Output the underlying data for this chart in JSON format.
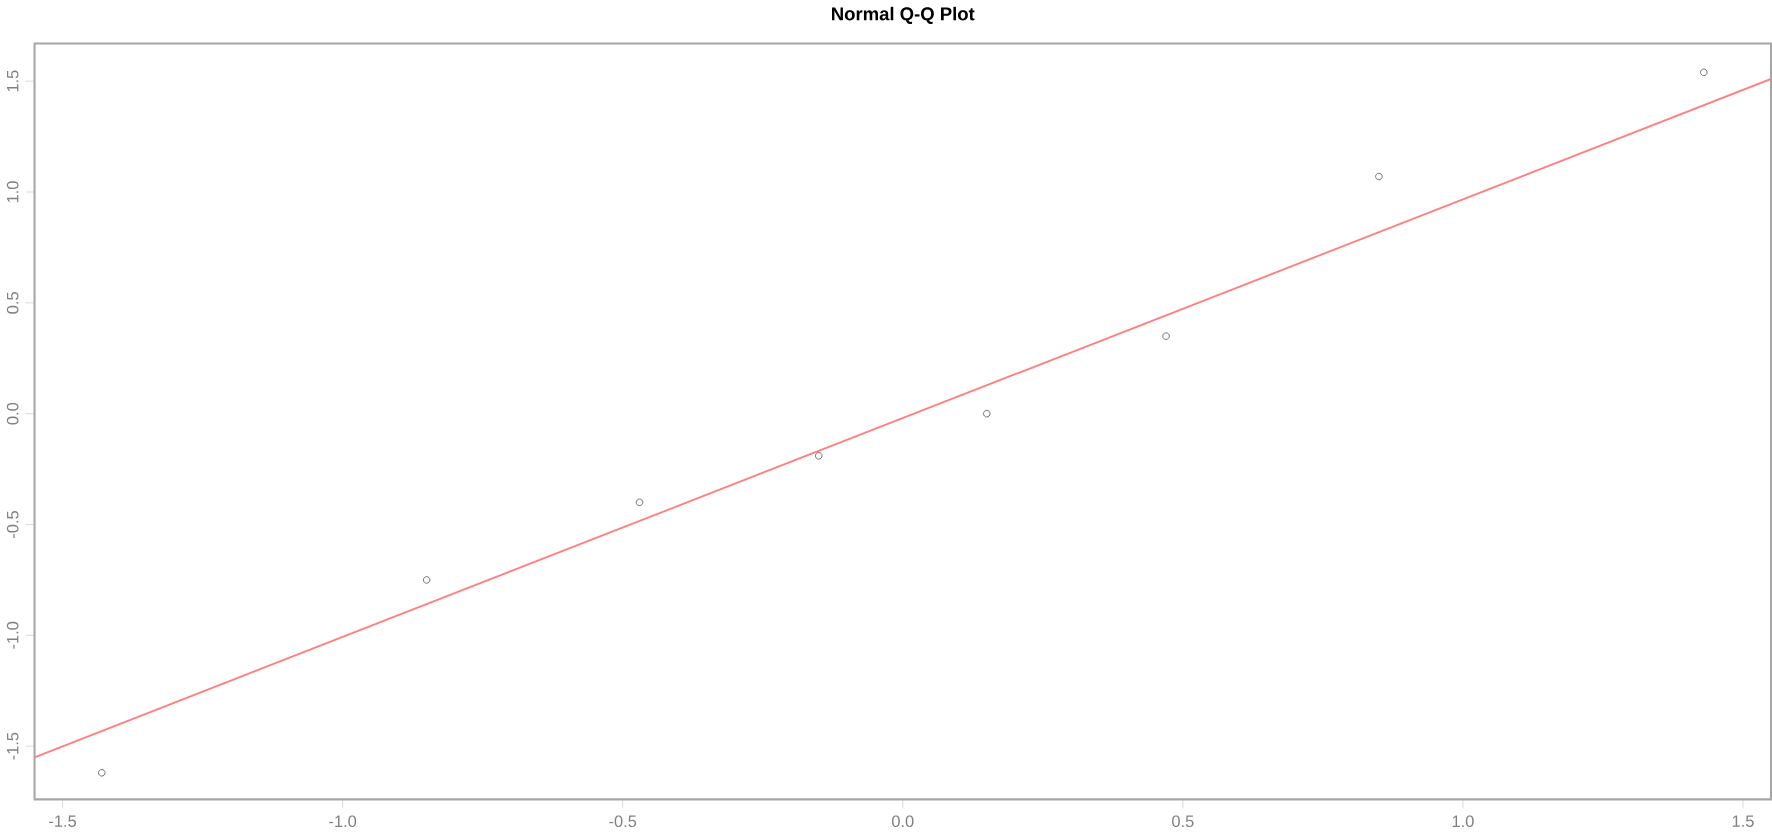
{
  "chart_data": {
    "type": "scatter",
    "title": "Normal Q-Q Plot",
    "xlim": [
      -1.55,
      1.55
    ],
    "ylim": [
      -1.74,
      1.67
    ],
    "xticks": [
      -1.5,
      {
        "value": -1,
        "label": "-1.0"
      },
      -0.5,
      {
        "value": 0,
        "label": "0.0"
      },
      0.5,
      {
        "value": 1,
        "label": "1.0"
      },
      1.5
    ],
    "yticks": [
      -1.5,
      {
        "value": -1,
        "label": "-1.0"
      },
      -0.5,
      {
        "value": 0,
        "label": "0.0"
      },
      0.5,
      {
        "value": 1,
        "label": "1.0"
      },
      1.5
    ],
    "grid": false,
    "series": [
      {
        "color": "#555555",
        "marker": "circle",
        "x": [
          -1.43,
          -0.85,
          -0.47,
          -0.15,
          0.15,
          0.47,
          0.85,
          1.43
        ],
        "values": [
          -1.62,
          -0.75,
          -0.4,
          -0.19,
          0.0,
          0.35,
          1.07,
          1.54
        ]
      },
      {
        "type": "line",
        "color": "#ff7f7f",
        "marker": "none",
        "x": [
          -1.55,
          1.55
        ],
        "values": [
          -1.55,
          1.51
        ]
      }
    ]
  }
}
